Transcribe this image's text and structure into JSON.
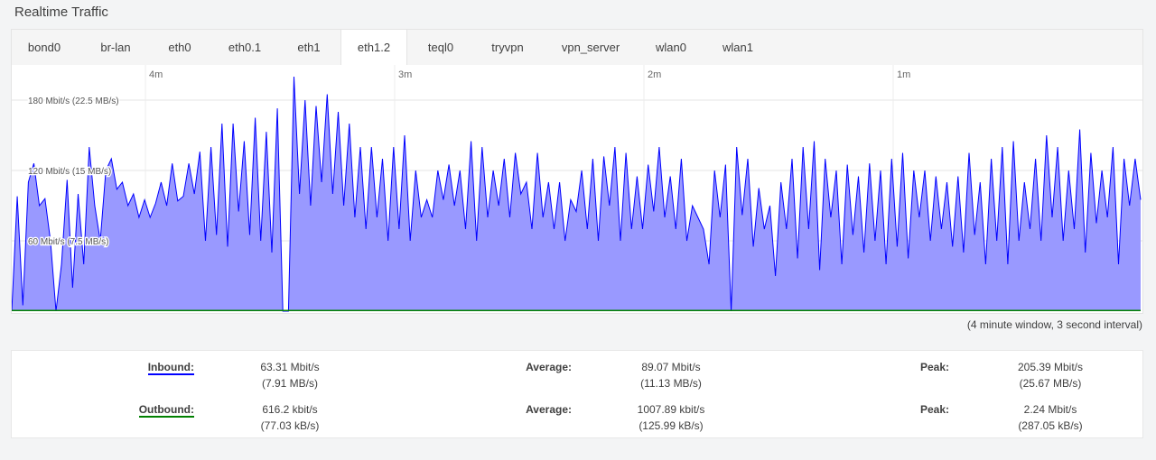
{
  "page": {
    "title": "Realtime Traffic"
  },
  "tabs": [
    {
      "label": "bond0"
    },
    {
      "label": "br-lan"
    },
    {
      "label": "eth0"
    },
    {
      "label": "eth0.1"
    },
    {
      "label": "eth1"
    },
    {
      "label": "eth1.2",
      "active": true
    },
    {
      "label": "teql0"
    },
    {
      "label": "tryvpn"
    },
    {
      "label": "vpn_server"
    },
    {
      "label": "wlan0"
    },
    {
      "label": "wlan1"
    }
  ],
  "chart_data": {
    "type": "area",
    "x_ticks": [
      "4m",
      "3m",
      "2m",
      "1m"
    ],
    "y_ticks": [
      "180 Mbit/s (22.5 MB/s)",
      "120 Mbit/s (15 MB/s)",
      "60 Mbit/s (7.5 MB/s)"
    ],
    "ylim": [
      0,
      210
    ],
    "grid": true,
    "series": [
      {
        "name": "Inbound",
        "color": "#0000ff",
        "fill": "#9999ff",
        "values": [
          0,
          98,
          5,
          110,
          126,
          90,
          96,
          60,
          0,
          40,
          112,
          20,
          100,
          40,
          140,
          90,
          60,
          120,
          130,
          104,
          110,
          90,
          100,
          80,
          95,
          80,
          92,
          110,
          90,
          126,
          94,
          98,
          126,
          100,
          136,
          60,
          140,
          65,
          160,
          55,
          160,
          85,
          145,
          65,
          165,
          60,
          153,
          50,
          173,
          0,
          0,
          200,
          100,
          180,
          90,
          175,
          110,
          185,
          100,
          170,
          90,
          160,
          80,
          140,
          70,
          140,
          80,
          130,
          60,
          140,
          70,
          150,
          60,
          120,
          80,
          95,
          80,
          120,
          95,
          125,
          90,
          120,
          70,
          145,
          60,
          140,
          80,
          120,
          90,
          130,
          80,
          135,
          100,
          110,
          70,
          135,
          80,
          110,
          70,
          110,
          60,
          95,
          85,
          120,
          70,
          130,
          60,
          132,
          90,
          140,
          60,
          135,
          70,
          115,
          70,
          125,
          85,
          140,
          80,
          115,
          70,
          130,
          60,
          90,
          80,
          70,
          40,
          120,
          80,
          125,
          0,
          140,
          82,
          130,
          55,
          105,
          70,
          90,
          30,
          110,
          70,
          130,
          45,
          140,
          70,
          145,
          35,
          130,
          80,
          120,
          40,
          125,
          65,
          115,
          50,
          126,
          60,
          120,
          40,
          130,
          55,
          135,
          45,
          120,
          80,
          120,
          60,
          115,
          70,
          110,
          55,
          115,
          50,
          135,
          65,
          110,
          40,
          130,
          60,
          140,
          40,
          145,
          60,
          110,
          70,
          130,
          60,
          150,
          80,
          140,
          60,
          120,
          70,
          155,
          50,
          135,
          75,
          120,
          80,
          140,
          40,
          130,
          90,
          130,
          95
        ]
      },
      {
        "name": "Outbound",
        "color": "#008000",
        "values": [
          0.62,
          0.62,
          0.62,
          0.62,
          0.62,
          0.62
        ]
      }
    ]
  },
  "chart_note": "(4 minute window, 3 second interval)",
  "stats": {
    "inbound": {
      "label": "Inbound:",
      "current_a": "63.31 Mbit/s",
      "current_b": "(7.91 MB/s)",
      "avg_label": "Average:",
      "avg_a": "89.07 Mbit/s",
      "avg_b": "(11.13 MB/s)",
      "peak_label": "Peak:",
      "peak_a": "205.39 Mbit/s",
      "peak_b": "(25.67 MB/s)"
    },
    "outbound": {
      "label": "Outbound:",
      "current_a": "616.2 kbit/s",
      "current_b": "(77.03 kB/s)",
      "avg_label": "Average:",
      "avg_a": "1007.89 kbit/s",
      "avg_b": "(125.99 kB/s)",
      "peak_label": "Peak:",
      "peak_a": "2.24 Mbit/s",
      "peak_b": "(287.05 kB/s)"
    }
  }
}
